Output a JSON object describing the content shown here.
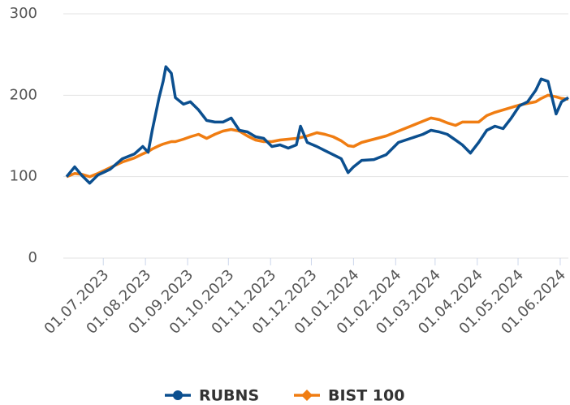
{
  "chart_data": {
    "type": "line",
    "x": [
      "2023-06-04",
      "2023-06-10",
      "2023-06-15",
      "2023-06-21",
      "2023-06-27",
      "2023-07-06",
      "2023-07-15",
      "2023-07-24",
      "2023-07-30",
      "2023-08-03",
      "2023-08-06",
      "2023-08-11",
      "2023-08-14",
      "2023-08-16",
      "2023-08-20",
      "2023-08-23",
      "2023-08-29",
      "2023-09-03",
      "2023-09-09",
      "2023-09-15",
      "2023-09-21",
      "2023-09-27",
      "2023-10-03",
      "2023-10-09",
      "2023-10-15",
      "2023-10-21",
      "2023-10-27",
      "2023-11-02",
      "2023-11-08",
      "2023-11-14",
      "2023-11-20",
      "2023-11-23",
      "2023-11-28",
      "2023-12-05",
      "2023-12-11",
      "2023-12-17",
      "2023-12-23",
      "2023-12-28",
      "2024-01-01",
      "2024-01-07",
      "2024-01-16",
      "2024-01-25",
      "2024-02-03",
      "2024-02-12",
      "2024-02-21",
      "2024-02-27",
      "2024-03-04",
      "2024-03-10",
      "2024-03-16",
      "2024-03-21",
      "2024-03-27",
      "2024-04-02",
      "2024-04-08",
      "2024-04-14",
      "2024-04-20",
      "2024-04-26",
      "2024-05-02",
      "2024-05-08",
      "2024-05-14",
      "2024-05-18",
      "2024-05-23",
      "2024-05-29",
      "2024-06-02",
      "2024-06-07"
    ],
    "series": [
      {
        "name": "RUBNS",
        "color": "#0b4f8f",
        "marker": "circle",
        "values": [
          100,
          112,
          102,
          92,
          102,
          109,
          122,
          128,
          137,
          130,
          157,
          197,
          217,
          235,
          227,
          197,
          189,
          192,
          182,
          169,
          167,
          167,
          172,
          157,
          155,
          149,
          147,
          137,
          139,
          135,
          139,
          162,
          142,
          137,
          132,
          127,
          122,
          105,
          112,
          120,
          121,
          127,
          142,
          147,
          152,
          157,
          155,
          152,
          145,
          139,
          129,
          142,
          157,
          162,
          159,
          172,
          187,
          192,
          206,
          220,
          217,
          177,
          192,
          197
        ]
      },
      {
        "name": "BIST 100",
        "color": "#f07d12",
        "marker": "diamond",
        "values": [
          100,
          104,
          103,
          100,
          104,
          111,
          118,
          123,
          128,
          131,
          134,
          138,
          140,
          141,
          143,
          143,
          146,
          149,
          152,
          147,
          152,
          156,
          158,
          156,
          150,
          145,
          143,
          143,
          145,
          146,
          147,
          148,
          150,
          154,
          152,
          149,
          144,
          138,
          137,
          142,
          146,
          150,
          156,
          162,
          168,
          172,
          170,
          166,
          163,
          167,
          167,
          167,
          175,
          179,
          182,
          185,
          188,
          190,
          192,
          196,
          200,
          198,
          196,
          195
        ]
      }
    ],
    "xlim": [
      "2023-06-04",
      "2024-06-07"
    ],
    "xticks": [
      {
        "value": "2023-07-01",
        "label": "01.07.2023"
      },
      {
        "value": "2023-08-01",
        "label": "01.08.2023"
      },
      {
        "value": "2023-09-01",
        "label": "01.09.2023"
      },
      {
        "value": "2023-10-01",
        "label": "01.10.2023"
      },
      {
        "value": "2023-11-01",
        "label": "01.11.2023"
      },
      {
        "value": "2023-12-01",
        "label": "01.12.2023"
      },
      {
        "value": "2024-01-01",
        "label": "01.01.2024"
      },
      {
        "value": "2024-02-01",
        "label": "01.02.2024"
      },
      {
        "value": "2024-03-01",
        "label": "01.03.2024"
      },
      {
        "value": "2024-04-01",
        "label": "01.04.2024"
      },
      {
        "value": "2024-05-01",
        "label": "01.05.2024"
      },
      {
        "value": "2024-06-01",
        "label": "01.06.2024"
      }
    ],
    "ylim": [
      0,
      300
    ],
    "yticks": [
      0,
      100,
      200,
      300
    ],
    "grid": true,
    "legend": "bottom"
  }
}
